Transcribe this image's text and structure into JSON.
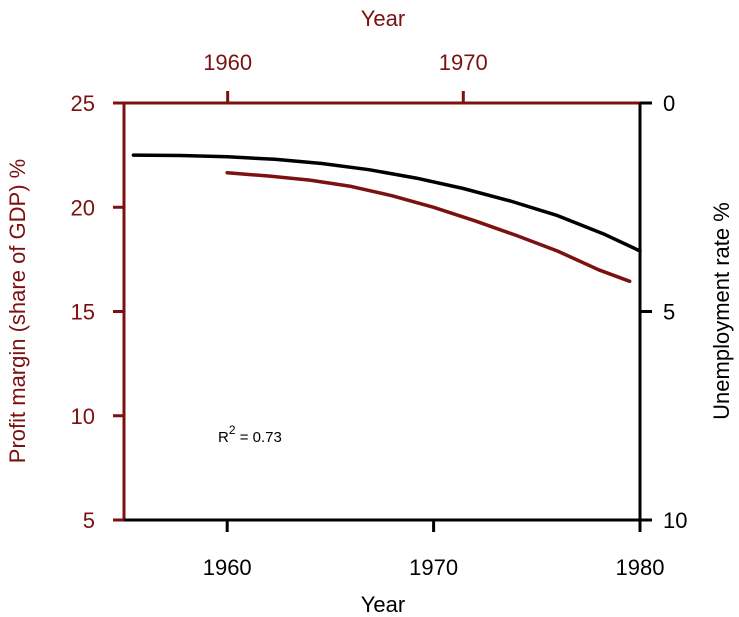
{
  "colors": {
    "profit": "#7b1111",
    "unemployment": "#000000"
  },
  "chart_data": {
    "type": "line",
    "top_axis": {
      "label": "Year",
      "ticks": [
        1960,
        1970
      ],
      "tick_labels": [
        "1960",
        "1970"
      ],
      "range": [
        1955.6,
        1977.5
      ]
    },
    "bottom_axis": {
      "label": "Year",
      "ticks": [
        1960,
        1970,
        1980
      ],
      "tick_labels": [
        "1960",
        "1970",
        "1980"
      ],
      "range": [
        1955,
        1980
      ]
    },
    "left_axis": {
      "label": "Profit margin (share of GDP) %",
      "ticks": [
        5,
        10,
        15,
        20,
        25
      ],
      "tick_labels": [
        "5",
        "10",
        "15",
        "20",
        "25"
      ],
      "range": [
        5,
        25
      ]
    },
    "right_axis": {
      "label": "Unemployment rate %",
      "ticks": [
        0,
        5,
        10
      ],
      "tick_labels": [
        "0",
        "5",
        "10"
      ],
      "range": [
        0,
        10
      ],
      "inverted": true
    },
    "series": [
      {
        "key": "profit",
        "axis_x": "bottom",
        "axis_y": "left",
        "x": [
          1960,
          1962,
          1964,
          1966,
          1968,
          1970,
          1972,
          1974,
          1976,
          1978,
          1979.5
        ],
        "y": [
          21.65,
          21.5,
          21.3,
          21.0,
          20.55,
          20.0,
          19.35,
          18.65,
          17.9,
          17.0,
          16.45
        ]
      },
      {
        "key": "unemployment",
        "axis_x": "top",
        "axis_y": "right",
        "x": [
          1956,
          1958,
          1960,
          1962,
          1964,
          1966,
          1968,
          1970,
          1972,
          1974,
          1976,
          1977.5
        ],
        "y": [
          1.25,
          1.26,
          1.29,
          1.35,
          1.45,
          1.6,
          1.8,
          2.05,
          2.35,
          2.7,
          3.15,
          3.55
        ]
      }
    ],
    "annotation": {
      "base": "R",
      "sup": "2",
      "rest": " = 0.73"
    },
    "grid": false,
    "legend": "none"
  }
}
